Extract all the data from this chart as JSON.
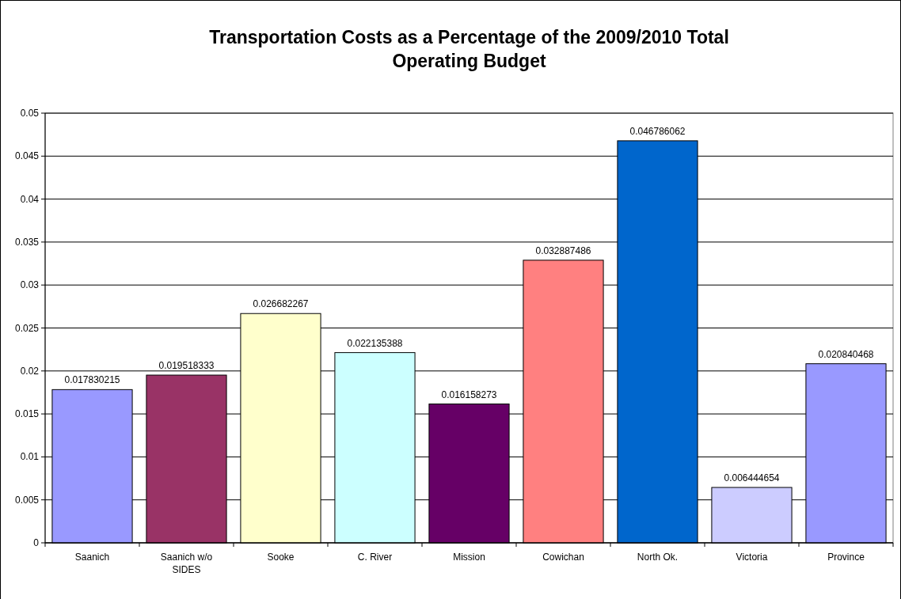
{
  "chart_data": {
    "type": "bar",
    "title": "Transportation Costs as a Percentage of the 2009/2010 Total Operating Budget",
    "categories": [
      "Saanich",
      "Saanich w/o SIDES",
      "Sooke",
      "C. River",
      "Mission",
      "Cowichan",
      "North Ok.",
      "Victoria",
      "Province"
    ],
    "values": [
      0.017830215,
      0.019518333,
      0.026682267,
      0.022135388,
      0.016158273,
      0.032887486,
      0.046786062,
      0.006444654,
      0.020840468
    ],
    "colors": [
      "#9999ff",
      "#993366",
      "#ffffcc",
      "#ccffff",
      "#660066",
      "#ff8080",
      "#0066cc",
      "#ccccff",
      "#9999ff"
    ],
    "ylim": [
      0,
      0.05
    ],
    "yticks": [
      0,
      0.005,
      0.01,
      0.015,
      0.02,
      0.025,
      0.03,
      0.035,
      0.04,
      0.045,
      0.05
    ],
    "grid": "y",
    "data_labels": true
  }
}
